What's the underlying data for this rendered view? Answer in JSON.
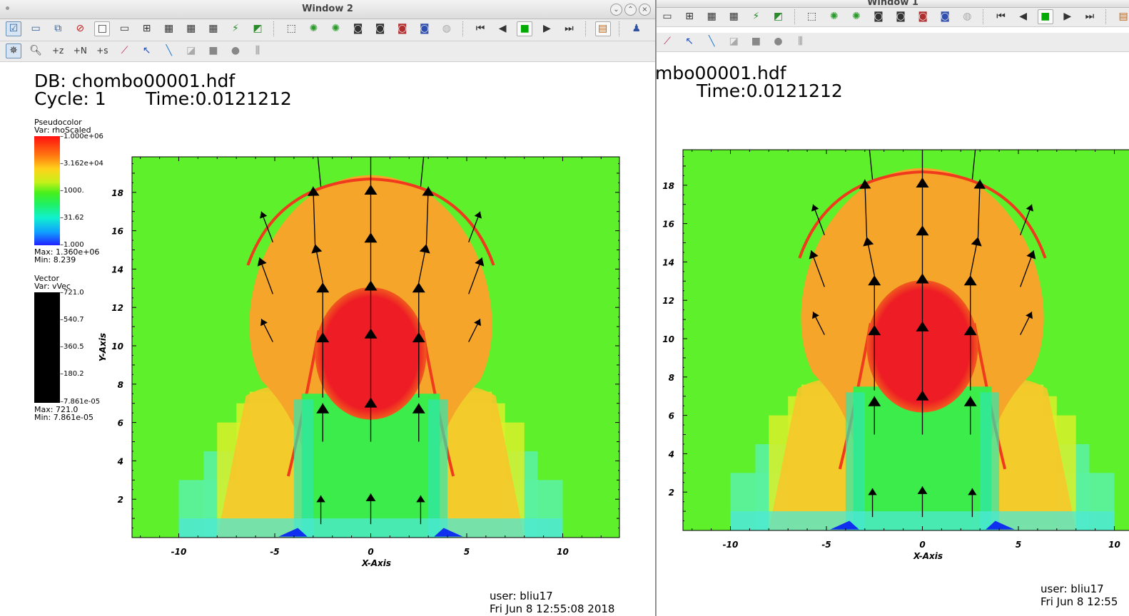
{
  "windows": [
    {
      "id": "win2",
      "title": "Window 2",
      "db_label": "DB: chombo00001.hdf",
      "cycle_label": "Cycle: 1",
      "time_label": "Time:0.0121212",
      "legend": {
        "pseudocolor_title": "Pseudocolor",
        "pseudocolor_var": "Var: rhoScaled",
        "pseudocolor_ticks": [
          "1.000e+06",
          "3.162e+04",
          "1000.",
          "31.62",
          "1.000"
        ],
        "pseudocolor_max": "Max: 1.360e+06",
        "pseudocolor_min": "Min: 8.239",
        "vector_title": "Vector",
        "vector_var": "Var: vVec",
        "vector_ticks": [
          "721.0",
          "540.7",
          "360.5",
          "180.2",
          "7.861e-05"
        ],
        "vector_max": "Max: 721.0",
        "vector_min": "Min: 7.861e-05"
      },
      "footer_user": "user: bliu17",
      "footer_date": "Fri Jun  8 12:55:08 2018"
    },
    {
      "id": "win1",
      "title": "Window 1",
      "db_label": "mbo00001.hdf",
      "time_label": "Time:0.0121212",
      "footer_user": "user: bliu17",
      "footer_date": "Fri Jun  8 12:55"
    }
  ],
  "axes": {
    "xlabel": "X-Axis",
    "ylabel": "Y-Axis",
    "xticks": [
      "-10",
      "-5",
      "0",
      "5",
      "10"
    ],
    "yticks": [
      "2",
      "4",
      "6",
      "8",
      "10",
      "12",
      "14",
      "16",
      "18"
    ]
  },
  "toolbar_icons": {
    "row1": [
      "active-window-icon",
      "new-window-icon",
      "clone-window-icon",
      "delete-window-icon",
      "layout-1x1-icon",
      "layout-1x2-icon",
      "layout-2x2-icon",
      "layout-2x4-icon",
      "layout-3x3-icon",
      "lock-view-icon",
      "lock-time-icon",
      "view-3d-icon",
      "spin-icon",
      "camera-icon",
      "save-image-icon",
      "invert-bg-icon",
      "recenter-icon",
      "undo-view-icon",
      "rewind-icon",
      "step-back-icon",
      "stop-icon",
      "play-icon",
      "step-forward-icon",
      "color-table-icon",
      "pick-icon",
      "query-icon",
      "lineout-icon"
    ],
    "row2": [
      "navigate-icon",
      "zoom-icon",
      "add-plane-z-icon",
      "add-plane-n-icon",
      "add-plane-s-icon",
      "curve-icon",
      "pick-point-icon",
      "line-tool-icon",
      "plane-tool-icon",
      "box-tool-icon",
      "sphere-tool-icon",
      "axis-restrict-icon"
    ]
  },
  "colors": {
    "background": "#5ef02a",
    "shell": "#f5a52a",
    "shock": "#f03a1e",
    "core": "#ee1c24",
    "jet": "#3cec4a",
    "cyan": "#2ee8b0",
    "blue": "#1030f0"
  }
}
